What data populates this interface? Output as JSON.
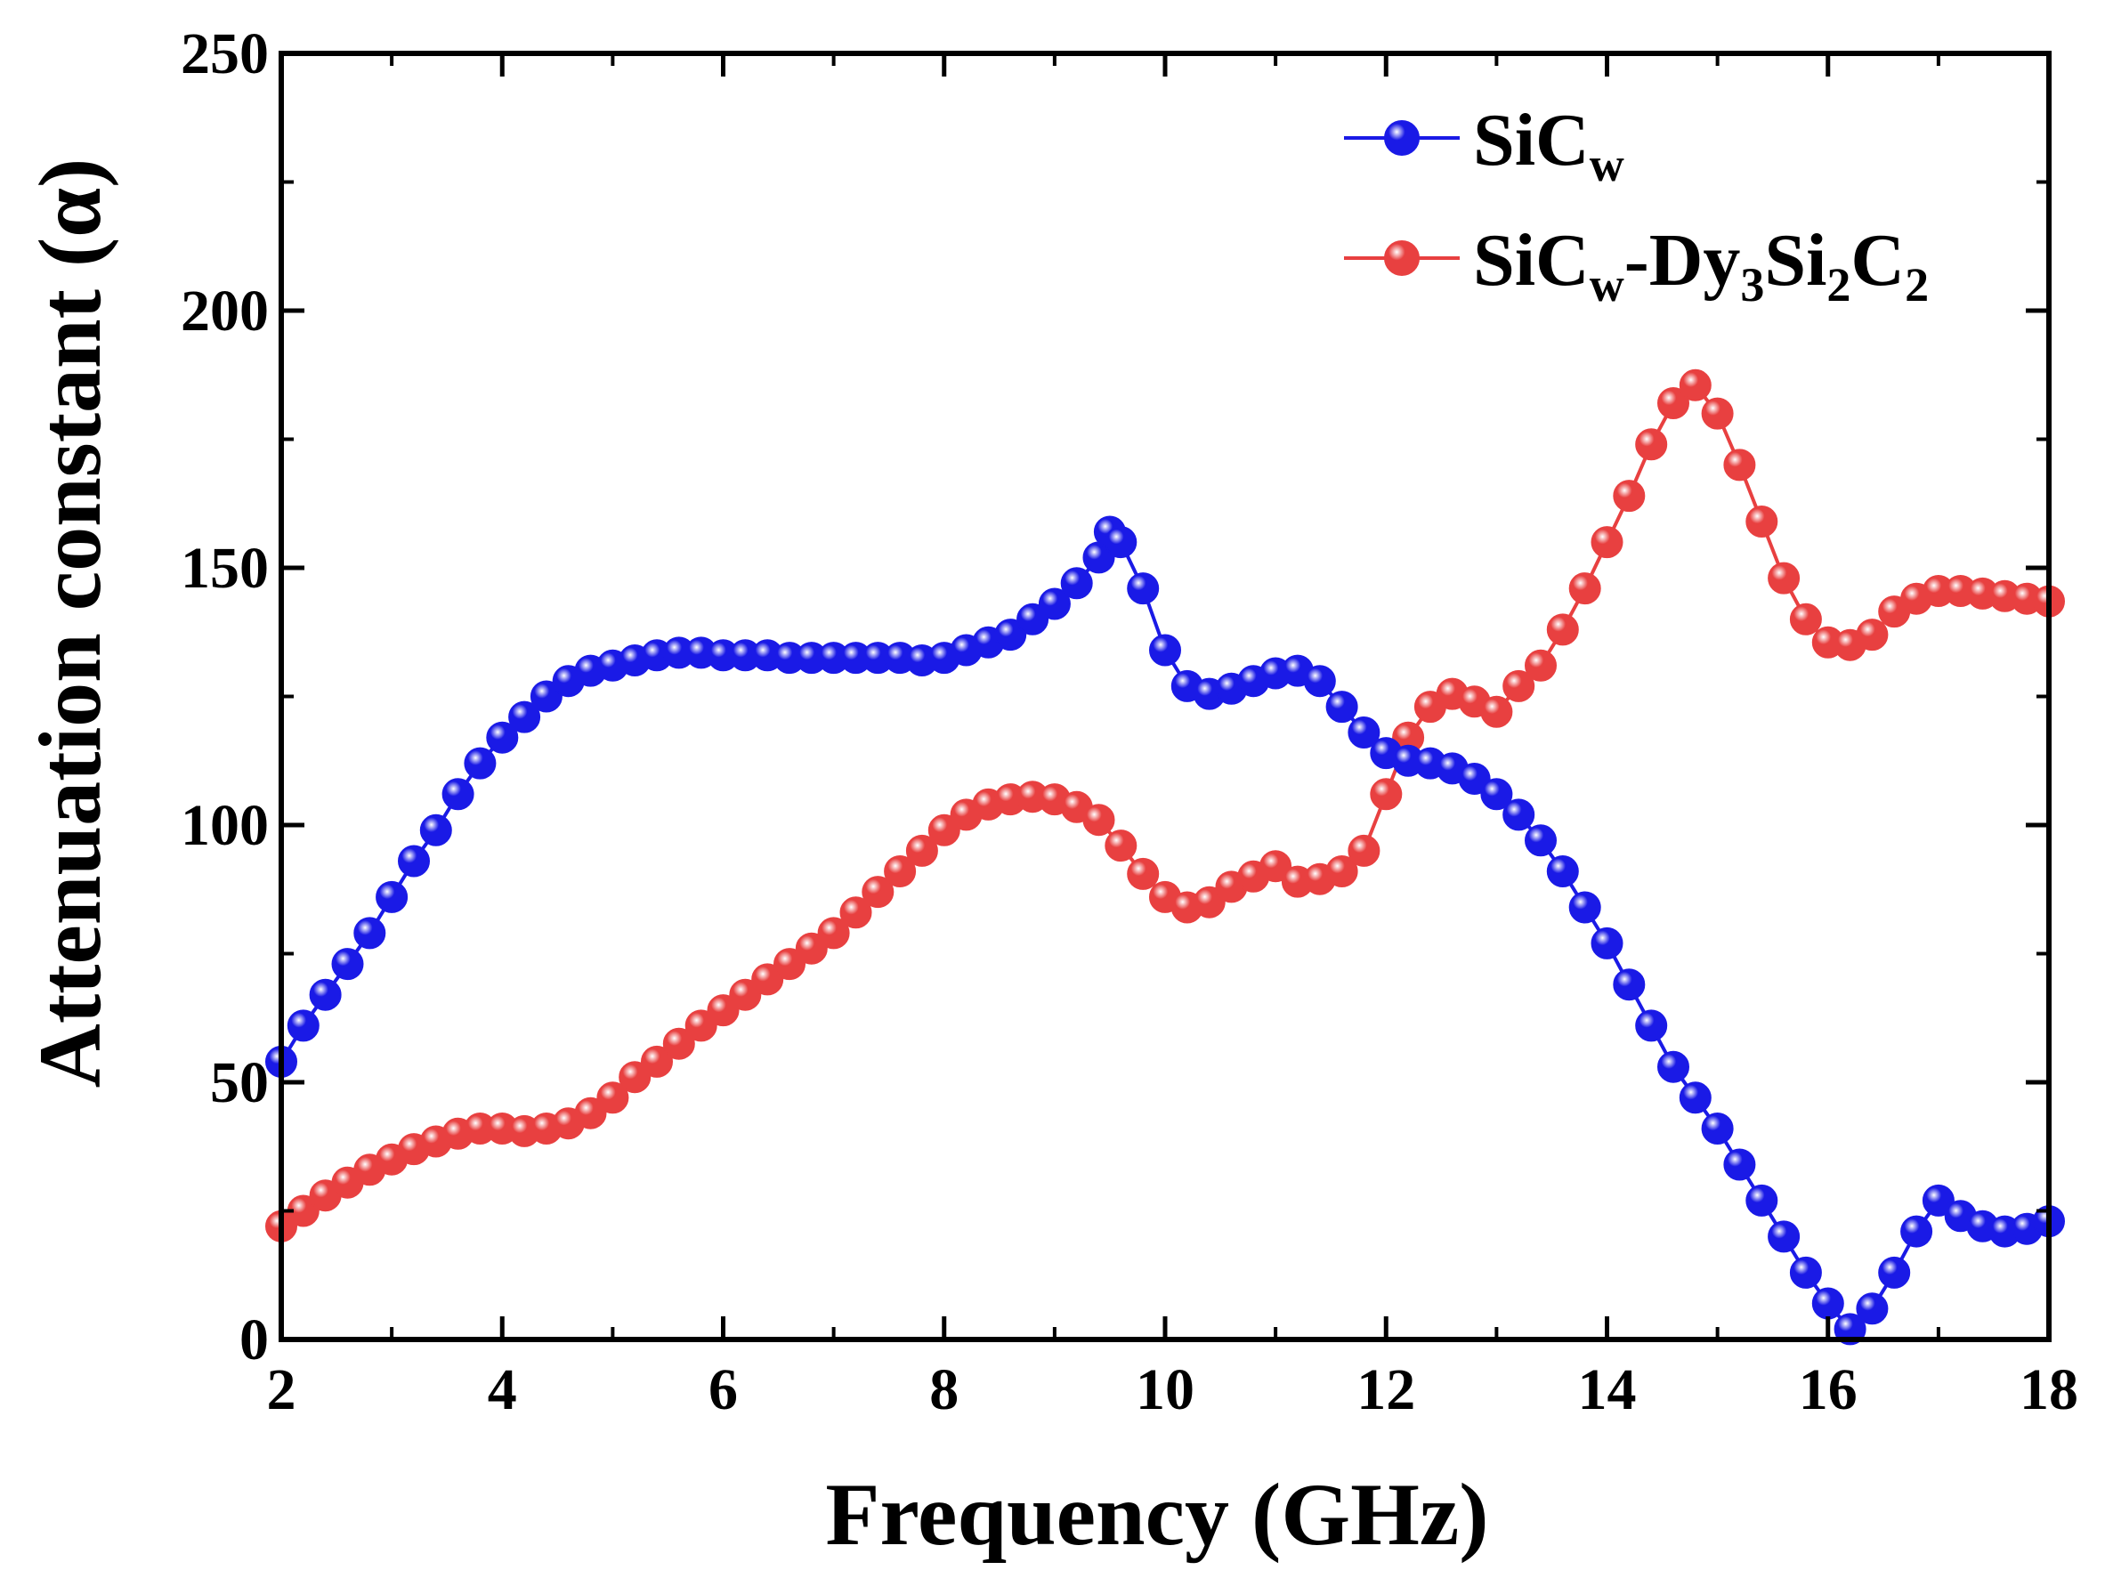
{
  "chart_data": {
    "type": "line",
    "xlabel": "Frequency (GHz)",
    "ylabel": "Attenuation constant (α)",
    "xlim": [
      2,
      18
    ],
    "ylim": [
      0,
      250
    ],
    "xticks": [
      "2",
      "4",
      "6",
      "8",
      "10",
      "12",
      "14",
      "16",
      "18"
    ],
    "yticks": [
      "0",
      "50",
      "100",
      "150",
      "200",
      "250"
    ],
    "legend_position": "top-right",
    "series": [
      {
        "name": "SiCw",
        "legend": {
          "base": "SiC",
          "sub": "w"
        },
        "color": "#1a1ae6",
        "marker": "circle",
        "points": [
          [
            2.0,
            54
          ],
          [
            2.2,
            61
          ],
          [
            2.4,
            67
          ],
          [
            2.6,
            73
          ],
          [
            2.8,
            79
          ],
          [
            3.0,
            86
          ],
          [
            3.2,
            93
          ],
          [
            3.4,
            99
          ],
          [
            3.6,
            106
          ],
          [
            3.8,
            112
          ],
          [
            4.0,
            117
          ],
          [
            4.2,
            121
          ],
          [
            4.4,
            125
          ],
          [
            4.6,
            128
          ],
          [
            4.8,
            130
          ],
          [
            5.0,
            131
          ],
          [
            5.2,
            132
          ],
          [
            5.4,
            133
          ],
          [
            5.6,
            133.5
          ],
          [
            5.8,
            133.5
          ],
          [
            6.0,
            133
          ],
          [
            6.2,
            133
          ],
          [
            6.4,
            133
          ],
          [
            6.6,
            132.5
          ],
          [
            6.8,
            132.5
          ],
          [
            7.0,
            132.5
          ],
          [
            7.2,
            132.5
          ],
          [
            7.4,
            132.5
          ],
          [
            7.6,
            132.5
          ],
          [
            7.8,
            132
          ],
          [
            8.0,
            132.5
          ],
          [
            8.2,
            134
          ],
          [
            8.4,
            135.5
          ],
          [
            8.6,
            137
          ],
          [
            8.8,
            140
          ],
          [
            9.0,
            143
          ],
          [
            9.2,
            147
          ],
          [
            9.4,
            152
          ],
          [
            9.5,
            157
          ],
          [
            9.6,
            155
          ],
          [
            9.8,
            146
          ],
          [
            10.0,
            134
          ],
          [
            10.2,
            127
          ],
          [
            10.4,
            125.5
          ],
          [
            10.6,
            126.5
          ],
          [
            10.8,
            128
          ],
          [
            11.0,
            129.5
          ],
          [
            11.2,
            130
          ],
          [
            11.4,
            128
          ],
          [
            11.6,
            123
          ],
          [
            11.8,
            118
          ],
          [
            12.0,
            114
          ],
          [
            12.2,
            112.5
          ],
          [
            12.4,
            112
          ],
          [
            12.6,
            111
          ],
          [
            12.8,
            109
          ],
          [
            13.0,
            106
          ],
          [
            13.2,
            102
          ],
          [
            13.4,
            97
          ],
          [
            13.6,
            91
          ],
          [
            13.8,
            84
          ],
          [
            14.0,
            77
          ],
          [
            14.2,
            69
          ],
          [
            14.4,
            61
          ],
          [
            14.6,
            53
          ],
          [
            14.8,
            47
          ],
          [
            15.0,
            41
          ],
          [
            15.2,
            34
          ],
          [
            15.4,
            27
          ],
          [
            15.6,
            20
          ],
          [
            15.8,
            13
          ],
          [
            16.0,
            7
          ],
          [
            16.2,
            2
          ],
          [
            16.4,
            6
          ],
          [
            16.6,
            13
          ],
          [
            16.8,
            21
          ],
          [
            17.0,
            27
          ],
          [
            17.2,
            24
          ],
          [
            17.4,
            22
          ],
          [
            17.6,
            21
          ],
          [
            17.8,
            21.5
          ],
          [
            18.0,
            23
          ]
        ]
      },
      {
        "name": "SiCw-Dy3Si2C2",
        "legend": {
          "base": "SiC",
          "sub": "w",
          "rest": "-Dy",
          "sub2": "3",
          "rest2": "Si",
          "sub3": "2",
          "rest3": "C",
          "sub4": "2"
        },
        "color": "#e84040",
        "marker": "circle",
        "points": [
          [
            2.0,
            22
          ],
          [
            2.2,
            25
          ],
          [
            2.4,
            28
          ],
          [
            2.6,
            30.5
          ],
          [
            2.8,
            33
          ],
          [
            3.0,
            35
          ],
          [
            3.2,
            37
          ],
          [
            3.4,
            38.5
          ],
          [
            3.6,
            40
          ],
          [
            3.8,
            41
          ],
          [
            4.0,
            41
          ],
          [
            4.2,
            40.5
          ],
          [
            4.4,
            41
          ],
          [
            4.6,
            42
          ],
          [
            4.8,
            44
          ],
          [
            5.0,
            47
          ],
          [
            5.2,
            51
          ],
          [
            5.4,
            54
          ],
          [
            5.6,
            57.5
          ],
          [
            5.8,
            61
          ],
          [
            6.0,
            64
          ],
          [
            6.2,
            67
          ],
          [
            6.4,
            70
          ],
          [
            6.6,
            73
          ],
          [
            6.8,
            76
          ],
          [
            7.0,
            79
          ],
          [
            7.2,
            83
          ],
          [
            7.4,
            87
          ],
          [
            7.6,
            91
          ],
          [
            7.8,
            95
          ],
          [
            8.0,
            99
          ],
          [
            8.2,
            102
          ],
          [
            8.4,
            104
          ],
          [
            8.6,
            105
          ],
          [
            8.8,
            105.5
          ],
          [
            9.0,
            105
          ],
          [
            9.2,
            103.5
          ],
          [
            9.4,
            101
          ],
          [
            9.6,
            96
          ],
          [
            9.8,
            90.5
          ],
          [
            10.0,
            86
          ],
          [
            10.2,
            84
          ],
          [
            10.4,
            85
          ],
          [
            10.6,
            88
          ],
          [
            10.8,
            90
          ],
          [
            11.0,
            92
          ],
          [
            11.2,
            89
          ],
          [
            11.4,
            89.5
          ],
          [
            11.6,
            91
          ],
          [
            11.8,
            95
          ],
          [
            12.0,
            106
          ],
          [
            12.2,
            117
          ],
          [
            12.4,
            123
          ],
          [
            12.6,
            125.5
          ],
          [
            12.8,
            124
          ],
          [
            13.0,
            122
          ],
          [
            13.2,
            127
          ],
          [
            13.4,
            131
          ],
          [
            13.6,
            138
          ],
          [
            13.8,
            146
          ],
          [
            14.0,
            155
          ],
          [
            14.2,
            164
          ],
          [
            14.4,
            174
          ],
          [
            14.6,
            182
          ],
          [
            14.8,
            185.5
          ],
          [
            15.0,
            180
          ],
          [
            15.2,
            170
          ],
          [
            15.4,
            159
          ],
          [
            15.6,
            148
          ],
          [
            15.8,
            140
          ],
          [
            16.0,
            135.5
          ],
          [
            16.2,
            135
          ],
          [
            16.4,
            137
          ],
          [
            16.6,
            141.5
          ],
          [
            16.8,
            144
          ],
          [
            17.0,
            145.5
          ],
          [
            17.2,
            145.5
          ],
          [
            17.4,
            145
          ],
          [
            17.6,
            144.5
          ],
          [
            17.8,
            144
          ],
          [
            18.0,
            143.5
          ]
        ]
      }
    ]
  }
}
